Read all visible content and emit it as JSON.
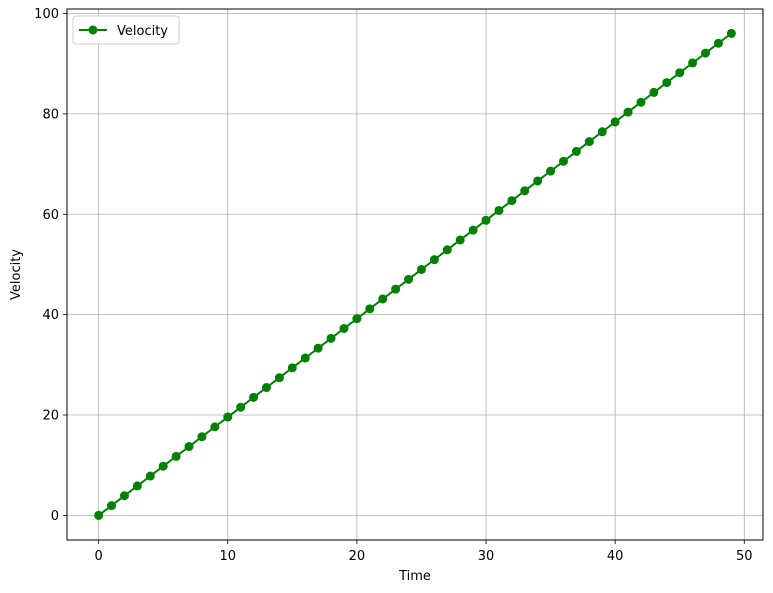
{
  "chart_data": {
    "type": "line",
    "title": "",
    "xlabel": "Time",
    "ylabel": "Velocity",
    "xlim": [
      -2.45,
      51.45
    ],
    "ylim": [
      -4.9,
      100.9
    ],
    "xticks": [
      0,
      10,
      20,
      30,
      40,
      50
    ],
    "yticks": [
      0,
      20,
      40,
      60,
      80,
      100
    ],
    "grid": true,
    "legend_position": "upper-left",
    "series": [
      {
        "name": "Velocity",
        "color": "#008000",
        "marker": "circle",
        "x": [
          0,
          1,
          2,
          3,
          4,
          5,
          6,
          7,
          8,
          9,
          10,
          11,
          12,
          13,
          14,
          15,
          16,
          17,
          18,
          19,
          20,
          21,
          22,
          23,
          24,
          25,
          26,
          27,
          28,
          29,
          30,
          31,
          32,
          33,
          34,
          35,
          36,
          37,
          38,
          39,
          40,
          41,
          42,
          43,
          44,
          45,
          46,
          47,
          48,
          49
        ],
        "values": [
          0,
          1.96,
          3.92,
          5.88,
          7.84,
          9.8,
          11.76,
          13.72,
          15.68,
          17.64,
          19.6,
          21.56,
          23.52,
          25.48,
          27.44,
          29.4,
          31.36,
          33.32,
          35.28,
          37.24,
          39.2,
          41.16,
          43.12,
          45.08,
          47.04,
          49,
          50.96,
          52.92,
          54.88,
          56.84,
          58.8,
          60.76,
          62.72,
          64.68,
          66.64,
          68.6,
          70.56,
          72.52,
          74.48,
          76.44,
          78.4,
          80.36,
          82.32,
          84.28,
          86.24,
          88.2,
          90.16,
          92.12,
          94.08,
          96.04
        ]
      }
    ]
  }
}
